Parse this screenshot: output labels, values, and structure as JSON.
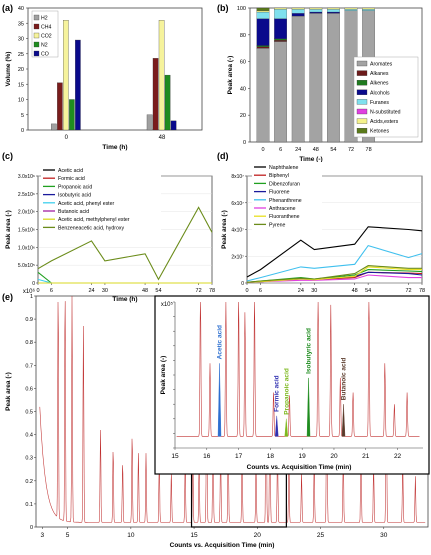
{
  "chart_data": [
    {
      "panel": "(a)",
      "type": "bar",
      "xlabel": "Time (h)",
      "ylabel": "Volume (%)",
      "ylim": [
        0,
        40
      ],
      "yticks": [
        0,
        5,
        10,
        15,
        20,
        25,
        30,
        35,
        40
      ],
      "categories": [
        "0",
        "48"
      ],
      "series": [
        {
          "name": "H2",
          "color": "#a0a0a0",
          "values": [
            2,
            5
          ]
        },
        {
          "name": "CH4",
          "color": "#7a1c1c",
          "values": [
            15.5,
            23.5
          ]
        },
        {
          "name": "CO2",
          "color": "#f6f39c",
          "values": [
            36,
            36
          ]
        },
        {
          "name": "N2",
          "color": "#1f8c1f",
          "values": [
            10,
            18
          ]
        },
        {
          "name": "CO",
          "color": "#0a0a8c",
          "values": [
            29.5,
            3
          ]
        }
      ],
      "legend": "top-left"
    },
    {
      "panel": "(b)",
      "type": "bar",
      "stacked": true,
      "xlabel": "Time (-)",
      "ylabel": "Peak area (-)",
      "ylim": [
        0,
        100
      ],
      "yticks": [
        0,
        20,
        40,
        60,
        80,
        100
      ],
      "categories": [
        "0",
        "6",
        "24",
        "48",
        "54",
        "72",
        "78"
      ],
      "series": [
        {
          "name": "Aromates",
          "color": "#a3a3a3",
          "values": [
            70,
            75,
            94,
            96,
            96,
            98,
            98
          ]
        },
        {
          "name": "Alkanes",
          "color": "#6b1a1a",
          "values": [
            1,
            1,
            0,
            0,
            0,
            0,
            0
          ]
        },
        {
          "name": "Alkenes",
          "color": "#1f7a1f",
          "values": [
            1,
            1,
            0,
            0,
            0,
            0,
            0
          ]
        },
        {
          "name": "Alcohols",
          "color": "#0a0a8c",
          "values": [
            20,
            15,
            2,
            1,
            1,
            0,
            0
          ]
        },
        {
          "name": "Furanes",
          "color": "#7fe0ee",
          "values": [
            5,
            7,
            3,
            2,
            2,
            1,
            1
          ]
        },
        {
          "name": "N-substituted",
          "color": "#e040e0",
          "values": [
            0,
            0,
            0,
            0,
            0,
            0,
            0
          ]
        },
        {
          "name": "Acids,esters",
          "color": "#f4f28c",
          "values": [
            1,
            1,
            1,
            1,
            1,
            1,
            1
          ]
        },
        {
          "name": "Ketones",
          "color": "#5a7a1a",
          "values": [
            2,
            0,
            0,
            0,
            0,
            0,
            0
          ]
        }
      ],
      "legend": "bottom-right"
    },
    {
      "panel": "(c)",
      "type": "line",
      "xlabel": "Time (h)",
      "ylabel": "Peak area (-)",
      "ylim": [
        0,
        3000000.0
      ],
      "yticks": [
        "0",
        "5.0x10⁵",
        "1.0x10⁶",
        "1.5x10⁶",
        "2.0x10⁶",
        "2.5x10⁶",
        "3.0x10⁶"
      ],
      "x": [
        0,
        6,
        24,
        30,
        48,
        54,
        72,
        78
      ],
      "series": [
        {
          "name": "Acetic acid",
          "color": "#000000",
          "values": [
            0,
            0,
            0,
            0,
            0,
            0,
            0,
            0
          ]
        },
        {
          "name": "Formic acid",
          "color": "#c02020",
          "values": [
            0,
            0,
            0,
            0,
            0,
            0,
            0,
            0
          ]
        },
        {
          "name": "Propanoic acid",
          "color": "#20a020",
          "values": [
            300000,
            0,
            0,
            0,
            0,
            0,
            0,
            0
          ]
        },
        {
          "name": "Isobutyric acid",
          "color": "#1a1a9c",
          "values": [
            0,
            0,
            0,
            0,
            0,
            0,
            0,
            0
          ]
        },
        {
          "name": "Acetic acid, phenyl ester",
          "color": "#40d0ee",
          "values": [
            100000,
            0,
            0,
            0,
            0,
            0,
            0,
            0
          ]
        },
        {
          "name": "Butanoic acid",
          "color": "#a020a0",
          "values": [
            0,
            0,
            0,
            0,
            0,
            0,
            0,
            0
          ]
        },
        {
          "name": "Acetic acid, methylphenyl ester",
          "color": "#d8d820",
          "values": [
            0,
            0,
            0,
            0,
            0,
            0,
            0,
            0
          ]
        },
        {
          "name": "Benzeneacetic acid, hydroxy",
          "color": "#6b8c1a",
          "values": [
            400000,
            620000,
            1180000,
            620000,
            820000,
            100000,
            2120000,
            1420000
          ]
        }
      ],
      "legend": "top-left"
    },
    {
      "panel": "(d)",
      "type": "line",
      "xlabel": "Time (h)",
      "ylabel": "Peak area (-)",
      "ylim": [
        0,
        80000000.0
      ],
      "yticks": [
        "0",
        "2x10⁷",
        "4x10⁷",
        "6x10⁷",
        "8x10⁷"
      ],
      "x": [
        0,
        6,
        24,
        30,
        48,
        54,
        72,
        78
      ],
      "series": [
        {
          "name": "Naphthalene",
          "color": "#000000",
          "values": [
            4500000.0,
            10000000.0,
            32000000.0,
            25000000.0,
            29000000.0,
            42000000.0,
            40000000.0,
            39000000.0
          ]
        },
        {
          "name": "Biphenyl",
          "color": "#c02020",
          "values": [
            500000,
            1000000.0,
            3000000.0,
            2500000.0,
            4000000.0,
            8000000.0,
            7500000.0,
            7000000.0
          ]
        },
        {
          "name": "Dibenzofuran",
          "color": "#20a020",
          "values": [
            500000,
            1500000.0,
            4000000.0,
            3000000.0,
            6000000.0,
            10000000.0,
            9000000.0,
            8500000.0
          ]
        },
        {
          "name": "Fluorene",
          "color": "#1a1a9c",
          "values": [
            500000,
            1000000.0,
            3000000.0,
            2500000.0,
            5000000.0,
            8000000.0,
            7000000.0,
            6000000.0
          ]
        },
        {
          "name": "Phenanthrene",
          "color": "#40c0ee",
          "values": [
            1500000.0,
            4000000.0,
            12000000.0,
            11000000.0,
            14000000.0,
            28000000.0,
            19000000.0,
            22000000.0
          ]
        },
        {
          "name": "Anthracene",
          "color": "#e040e0",
          "values": [
            500000,
            1000000.0,
            2000000.0,
            2000000.0,
            3000000.0,
            6000000.0,
            4000000.0,
            4000000.0
          ]
        },
        {
          "name": "Fluoranthene",
          "color": "#e8e020",
          "values": [
            500000,
            1000000.0,
            3000000.0,
            2500000.0,
            5000000.0,
            12000000.0,
            10000000.0,
            10000000.0
          ]
        },
        {
          "name": "Pyrene",
          "color": "#6b8c1a",
          "values": [
            500000,
            1500000.0,
            3500000.0,
            3000000.0,
            7000000.0,
            13000000.0,
            11000000.0,
            11000000.0
          ]
        }
      ],
      "legend": "top-left"
    },
    {
      "panel": "(e)",
      "type": "line",
      "xlabel": "Counts vs. Acquisition Time (min)",
      "ylabel": "Peak area (-)",
      "y_scale_label": "x10⁶",
      "xticks": [
        3,
        5,
        10,
        15,
        20,
        25,
        30
      ],
      "yticks": [
        0,
        0.1,
        0.2,
        0.3,
        0.4,
        0.5,
        0.6,
        0.7,
        0.8,
        0.9,
        1
      ],
      "xlim": [
        2.5,
        33.5
      ],
      "ylim": [
        0,
        1
      ],
      "inset": {
        "xlabel": "Counts vs. Acquisition Time (min)",
        "ylabel": "Peak area (-)",
        "y_scale_label": "x10⁵",
        "xticks": [
          15,
          16,
          17,
          18,
          19,
          20,
          21,
          22
        ],
        "yticks": [
          0,
          0.1,
          0.2,
          0.3,
          0.4,
          0.5,
          0.6,
          0.7,
          0.8,
          0.9,
          1
        ],
        "annotations": [
          {
            "text": "Acetic acid",
            "x": 16.4,
            "color": "#2d6fd0"
          },
          {
            "text": "Formic acid",
            "x": 18.2,
            "color": "#3030b0"
          },
          {
            "text": "Propanoic acid",
            "x": 18.5,
            "color": "#7cb81c"
          },
          {
            "text": "Isobutyric acid",
            "x": 19.2,
            "color": "#1f8c1f"
          },
          {
            "text": "Butanoic acid",
            "x": 20.3,
            "color": "#5a3a2a"
          }
        ]
      }
    }
  ],
  "labels": {
    "a": "(a)",
    "b": "(b)",
    "c": "(c)",
    "d": "(d)",
    "e": "(e)"
  }
}
